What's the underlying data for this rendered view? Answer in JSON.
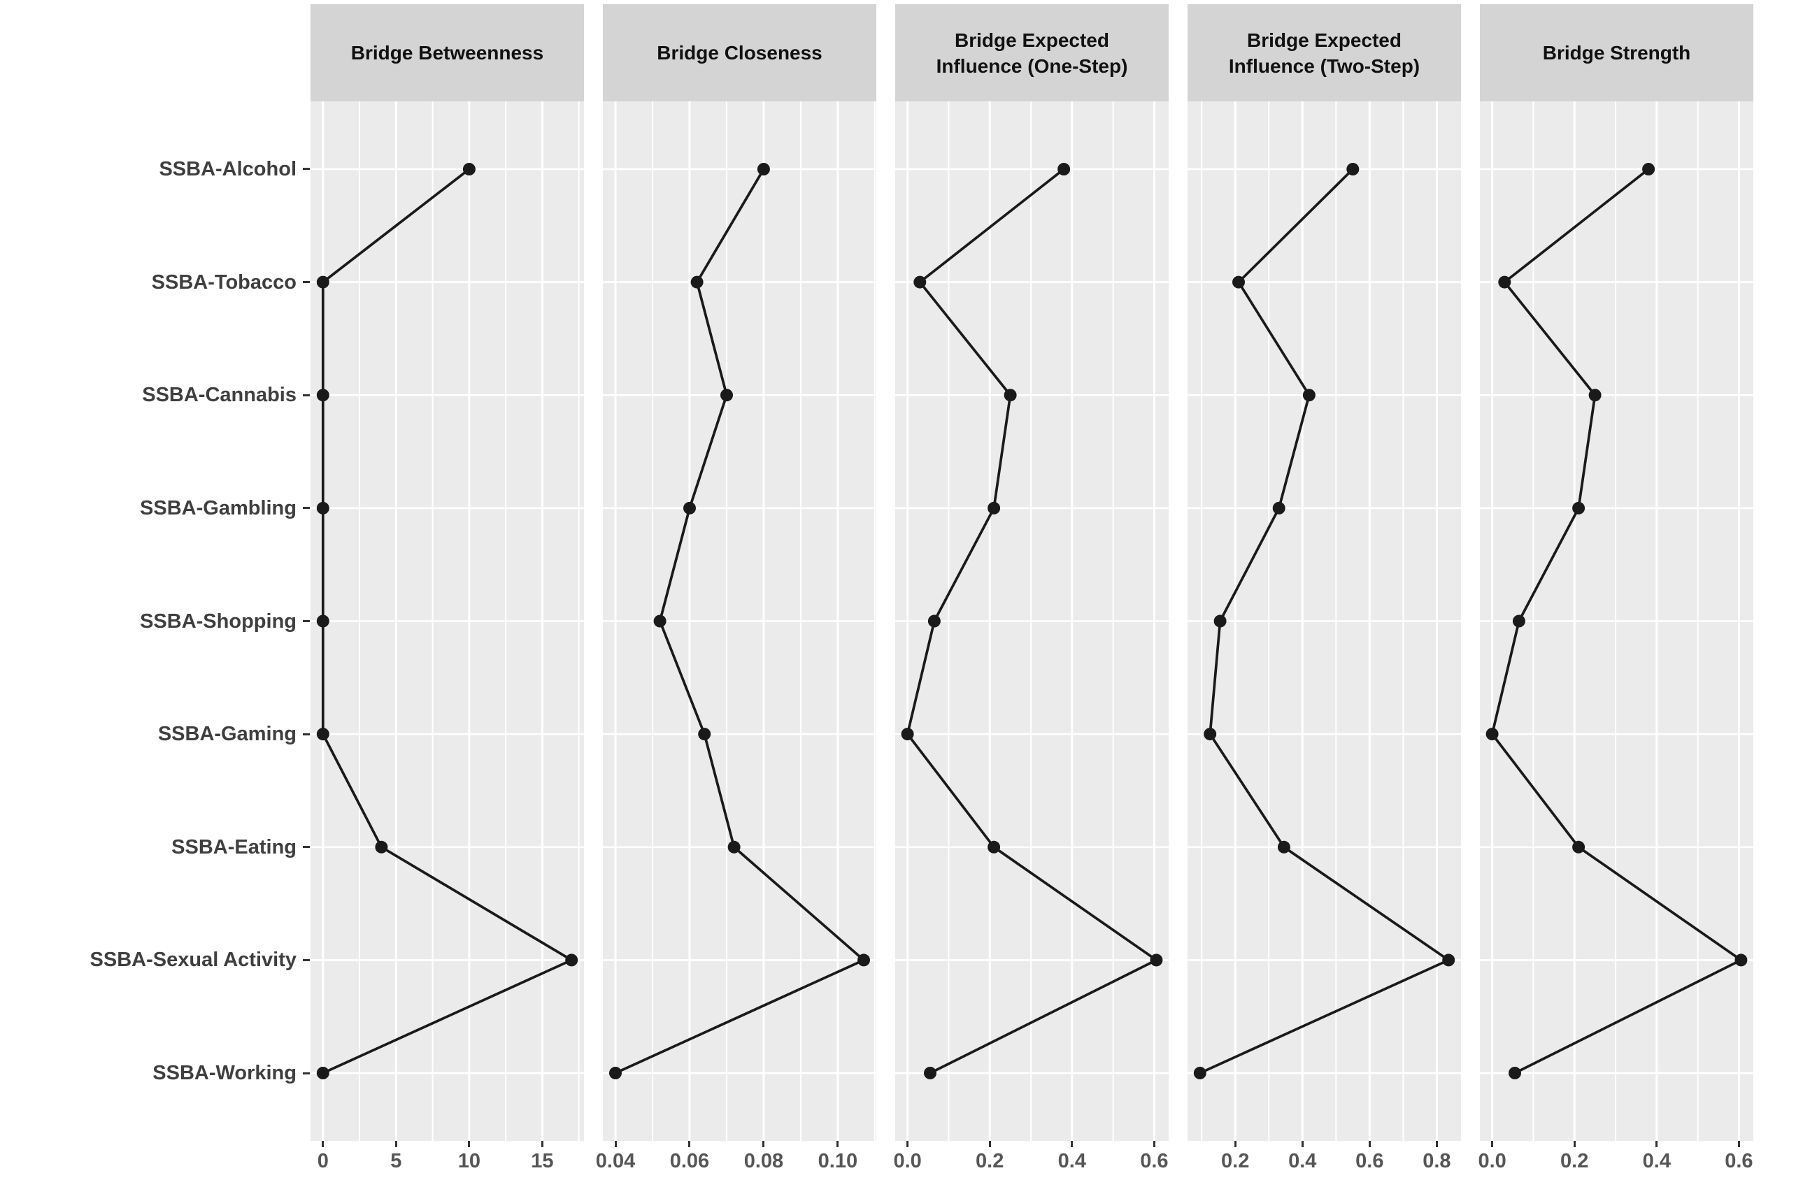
{
  "chart_data": {
    "type": "line",
    "facet_layout": "5 column facets sharing one categorical y-axis; each facet is a dot-and-line profile over the same 9 categories",
    "legend": false,
    "grid": "white major and minor gridlines on grey panels",
    "categories": [
      "SSBA-Alcohol",
      "SSBA-Tobacco",
      "SSBA-Cannabis",
      "SSBA-Gambling",
      "SSBA-Shopping",
      "SSBA-Gaming",
      "SSBA-Eating",
      "SSBA-Sexual Activity",
      "SSBA-Working"
    ],
    "facets": [
      {
        "title": "Bridge Betweenness",
        "title_lines": [
          "Bridge Betweenness"
        ],
        "values": [
          10,
          0,
          0,
          0,
          0,
          0,
          4,
          17,
          0
        ],
        "xlim": [
          -0.85,
          17.85
        ],
        "ticks": [
          0,
          5,
          10,
          15
        ],
        "tick_labels": [
          "0",
          "5",
          "10",
          "15"
        ],
        "minor_ticks": [
          2.5,
          7.5,
          12.5,
          17.5
        ]
      },
      {
        "title": "Bridge Closeness",
        "title_lines": [
          "Bridge Closeness"
        ],
        "values": [
          0.08,
          0.062,
          0.07,
          0.06,
          0.052,
          0.064,
          0.072,
          0.107,
          0.04
        ],
        "xlim": [
          0.0366,
          0.1104
        ],
        "ticks": [
          0.04,
          0.06,
          0.08,
          0.1
        ],
        "tick_labels": [
          "0.04",
          "0.06",
          "0.08",
          "0.10"
        ],
        "minor_ticks": [
          0.05,
          0.07,
          0.09,
          0.11
        ]
      },
      {
        "title": "Bridge Expected Influence (One-Step)",
        "title_lines": [
          "Bridge Expected",
          "Influence (One-Step)"
        ],
        "values": [
          0.38,
          0.03,
          0.25,
          0.21,
          0.065,
          0.0,
          0.21,
          0.605,
          0.055
        ],
        "xlim": [
          -0.03,
          0.635
        ],
        "ticks": [
          0.0,
          0.2,
          0.4,
          0.6
        ],
        "tick_labels": [
          "0.0",
          "0.2",
          "0.4",
          "0.6"
        ],
        "minor_ticks": [
          0.1,
          0.3,
          0.5
        ]
      },
      {
        "title": "Bridge Expected Influence (Two-Step)",
        "title_lines": [
          "Bridge Expected",
          "Influence (Two-Step)"
        ],
        "values": [
          0.55,
          0.21,
          0.42,
          0.33,
          0.155,
          0.125,
          0.345,
          0.835,
          0.095
        ],
        "xlim": [
          0.058,
          0.872
        ],
        "ticks": [
          0.2,
          0.4,
          0.6,
          0.8
        ],
        "tick_labels": [
          "0.2",
          "0.4",
          "0.6",
          "0.8"
        ],
        "minor_ticks": [
          0.1,
          0.3,
          0.5,
          0.7
        ]
      },
      {
        "title": "Bridge Strength",
        "title_lines": [
          "Bridge Strength"
        ],
        "values": [
          0.38,
          0.03,
          0.25,
          0.21,
          0.065,
          0.0,
          0.21,
          0.605,
          0.055
        ],
        "xlim": [
          -0.03,
          0.635
        ],
        "ticks": [
          0.0,
          0.2,
          0.4,
          0.6
        ],
        "tick_labels": [
          "0.0",
          "0.2",
          "0.4",
          "0.6"
        ],
        "minor_ticks": [
          0.1,
          0.3,
          0.5
        ]
      }
    ],
    "colors": {
      "panel_bg": "#ebebeb",
      "strip_bg": "#d4d4d4",
      "grid": "#ffffff",
      "line": "#1a1a1a",
      "point": "#1a1a1a",
      "x_tick_label": "#565656",
      "y_axis_label": "#3f3f3f",
      "strip_text": "#111111",
      "axis_tick": "#333333"
    }
  }
}
